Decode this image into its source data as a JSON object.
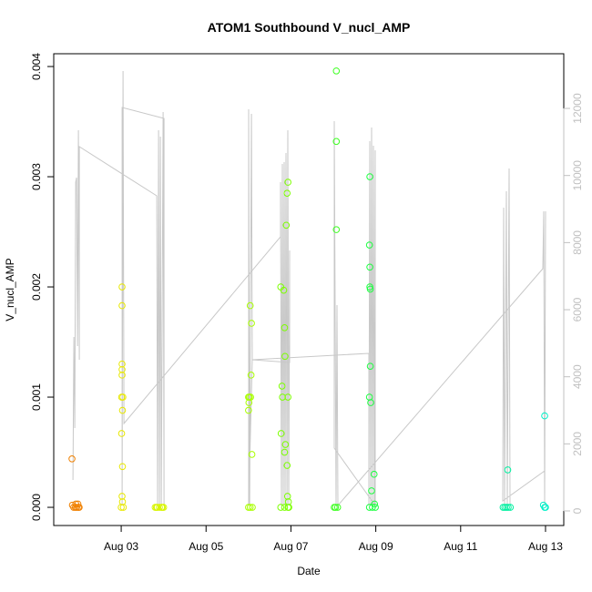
{
  "chart_data": {
    "type": "scatter",
    "title": "ATOM1 Southbound V_nucl_AMP",
    "xlabel": "Date",
    "ylabel": "V_nucl_AMP",
    "xlim": [
      1.41,
      13.43
    ],
    "ylim": [
      -0.000165,
      0.004116
    ],
    "y2lim": [
      -434,
      13630
    ],
    "xticks": [
      {
        "value": 3,
        "label": "Aug 03"
      },
      {
        "value": 5,
        "label": "Aug 05"
      },
      {
        "value": 7,
        "label": "Aug 07"
      },
      {
        "value": 9,
        "label": "Aug 09"
      },
      {
        "value": 11,
        "label": "Aug 11"
      },
      {
        "value": 13,
        "label": "Aug 13"
      }
    ],
    "yticks": [
      {
        "value": 0,
        "label": "0.000"
      },
      {
        "value": 0.001,
        "label": "0.001"
      },
      {
        "value": 0.002,
        "label": "0.002"
      },
      {
        "value": 0.003,
        "label": "0.003"
      },
      {
        "value": 0.004,
        "label": "0.004"
      }
    ],
    "y2ticks": [
      0,
      2000,
      4000,
      6000,
      8000,
      10000,
      12000
    ],
    "y2color": "#c0c0c0",
    "series": [
      {
        "type": "line",
        "axis": "y2",
        "color": "#c8c8c8",
        "x": [
          1.863,
          1.884,
          1.906,
          1.927,
          1.948,
          1.97,
          1.991,
          2.013,
          2.013,
          3.837,
          3.858,
          3.88,
          3.901,
          3.923,
          3.944,
          3.987,
          4.009,
          4.009,
          3.021,
          3.021,
          3.043,
          3.064,
          6.755,
          6.755,
          6.777,
          6.798,
          6.82,
          6.841,
          6.863,
          6.884,
          6.906,
          6.927,
          6.948,
          6.97,
          6.97,
          6.09,
          6.004,
          6.004,
          6.026,
          6.069,
          6.09,
          8.837,
          8.837,
          8.858,
          8.88,
          8.901,
          8.923,
          8.944,
          8.966,
          8.987,
          8.987,
          8.021,
          8.021,
          8.064,
          8.086,
          8.107,
          12.936,
          12.957,
          12.979,
          13.0,
          12.979,
          11.991,
          12.013,
          12.034,
          12.077,
          12.099,
          12.142,
          12.163
        ],
        "values": [
          923,
          5186,
          2471,
          9802,
          9937,
          4914,
          11350,
          4507,
          10861,
          9395,
          163,
          11350,
          163,
          11160,
          163,
          11893,
          163,
          11702,
          12028,
          163,
          13114,
          2607,
          8173,
          9802,
          163,
          10345,
          163,
          10399,
          163,
          10671,
          163,
          11350,
          163,
          7766,
          4426,
          4507,
          163,
          11974,
          163,
          11838,
          4507,
          4697,
          163,
          11024,
          163,
          11431,
          163,
          10888,
          163,
          10752,
          163,
          1873,
          11621,
          163,
          6136,
          163,
          7222,
          8933,
          163,
          8933,
          1195,
          299,
          9042,
          163,
          9530,
          163,
          10209,
          163
        ]
      },
      {
        "type": "scatter",
        "color": "#f08000",
        "x": [
          1.84,
          1.88,
          1.92,
          1.95,
          1.99,
          2.01,
          1.85,
          1.93,
          1.98
        ],
        "values": [
          0.00044,
          0,
          0,
          0,
          0,
          0,
          2e-05,
          3e-05,
          3e-05
        ]
      },
      {
        "type": "scatter",
        "color": "#e8e800",
        "x": [
          3.02,
          3.02,
          3.02,
          3.02,
          3.02,
          3.01,
          3.04,
          3.03,
          3.01,
          3.03,
          3.02,
          3.03,
          3.0,
          3.05
        ],
        "values": [
          0.002,
          0.00183,
          0.0013,
          0.00125,
          0.0012,
          0.001,
          0.001,
          0.00088,
          0.00067,
          0.00037,
          0.0001,
          5e-05,
          0,
          0
        ]
      },
      {
        "type": "scatter",
        "color": "#d8f500",
        "x": [
          3.8,
          3.85,
          3.9,
          3.95,
          4.0,
          3.83,
          3.97
        ],
        "values": [
          0,
          0,
          0,
          0,
          0,
          0,
          0
        ]
      },
      {
        "type": "scatter",
        "color": "#a8ff00",
        "x": [
          6.04,
          6.07,
          6.06,
          6.0,
          6.02,
          6.05,
          6.01,
          6.0,
          6.08,
          6.0,
          6.04,
          6.09
        ],
        "values": [
          0.00183,
          0.00167,
          0.0012,
          0.001,
          0.001,
          0.001,
          0.00095,
          0.00088,
          0.00048,
          0,
          0,
          0
        ]
      },
      {
        "type": "scatter",
        "color": "#7cff00",
        "x": [
          6.93,
          6.91,
          6.89,
          6.76,
          6.83,
          6.85,
          6.86,
          6.79,
          6.8,
          6.93,
          6.77,
          6.87,
          6.85,
          6.91,
          6.92,
          6.94,
          6.95,
          6.76,
          6.85,
          6.93
        ],
        "values": [
          0.00295,
          0.00285,
          0.00256,
          0.002,
          0.00197,
          0.00163,
          0.00137,
          0.0011,
          0.001,
          0.001,
          0.00067,
          0.00057,
          0.0005,
          0.00038,
          0.0001,
          5e-05,
          0,
          0,
          0,
          0
        ]
      },
      {
        "type": "scatter",
        "color": "#3cff20",
        "x": [
          8.07,
          8.07,
          8.07,
          8.02,
          8.05,
          8.1
        ],
        "values": [
          0.00396,
          0.00332,
          0.00252,
          0,
          0,
          0
        ]
      },
      {
        "type": "scatter",
        "color": "#1cff40",
        "x": [
          8.86,
          8.85,
          8.86,
          8.86,
          8.87,
          8.87,
          8.85,
          8.88,
          8.9,
          8.96,
          8.97,
          8.85,
          8.92,
          8.99
        ],
        "values": [
          0.003,
          0.00238,
          0.00218,
          0.002,
          0.00198,
          0.00128,
          0.001,
          0.00095,
          0.00015,
          0.0003,
          3e-05,
          0,
          0,
          0
        ]
      },
      {
        "type": "scatter",
        "color": "#00f0a0",
        "x": [
          12.0,
          12.04,
          12.08,
          12.12,
          12.17,
          12.11
        ],
        "values": [
          0,
          0,
          0,
          0,
          0,
          0.00034
        ]
      },
      {
        "type": "scatter",
        "color": "#00f0c8",
        "x": [
          12.98,
          12.95,
          12.98,
          13.0
        ],
        "values": [
          0.00083,
          2e-05,
          0,
          0
        ]
      }
    ]
  }
}
